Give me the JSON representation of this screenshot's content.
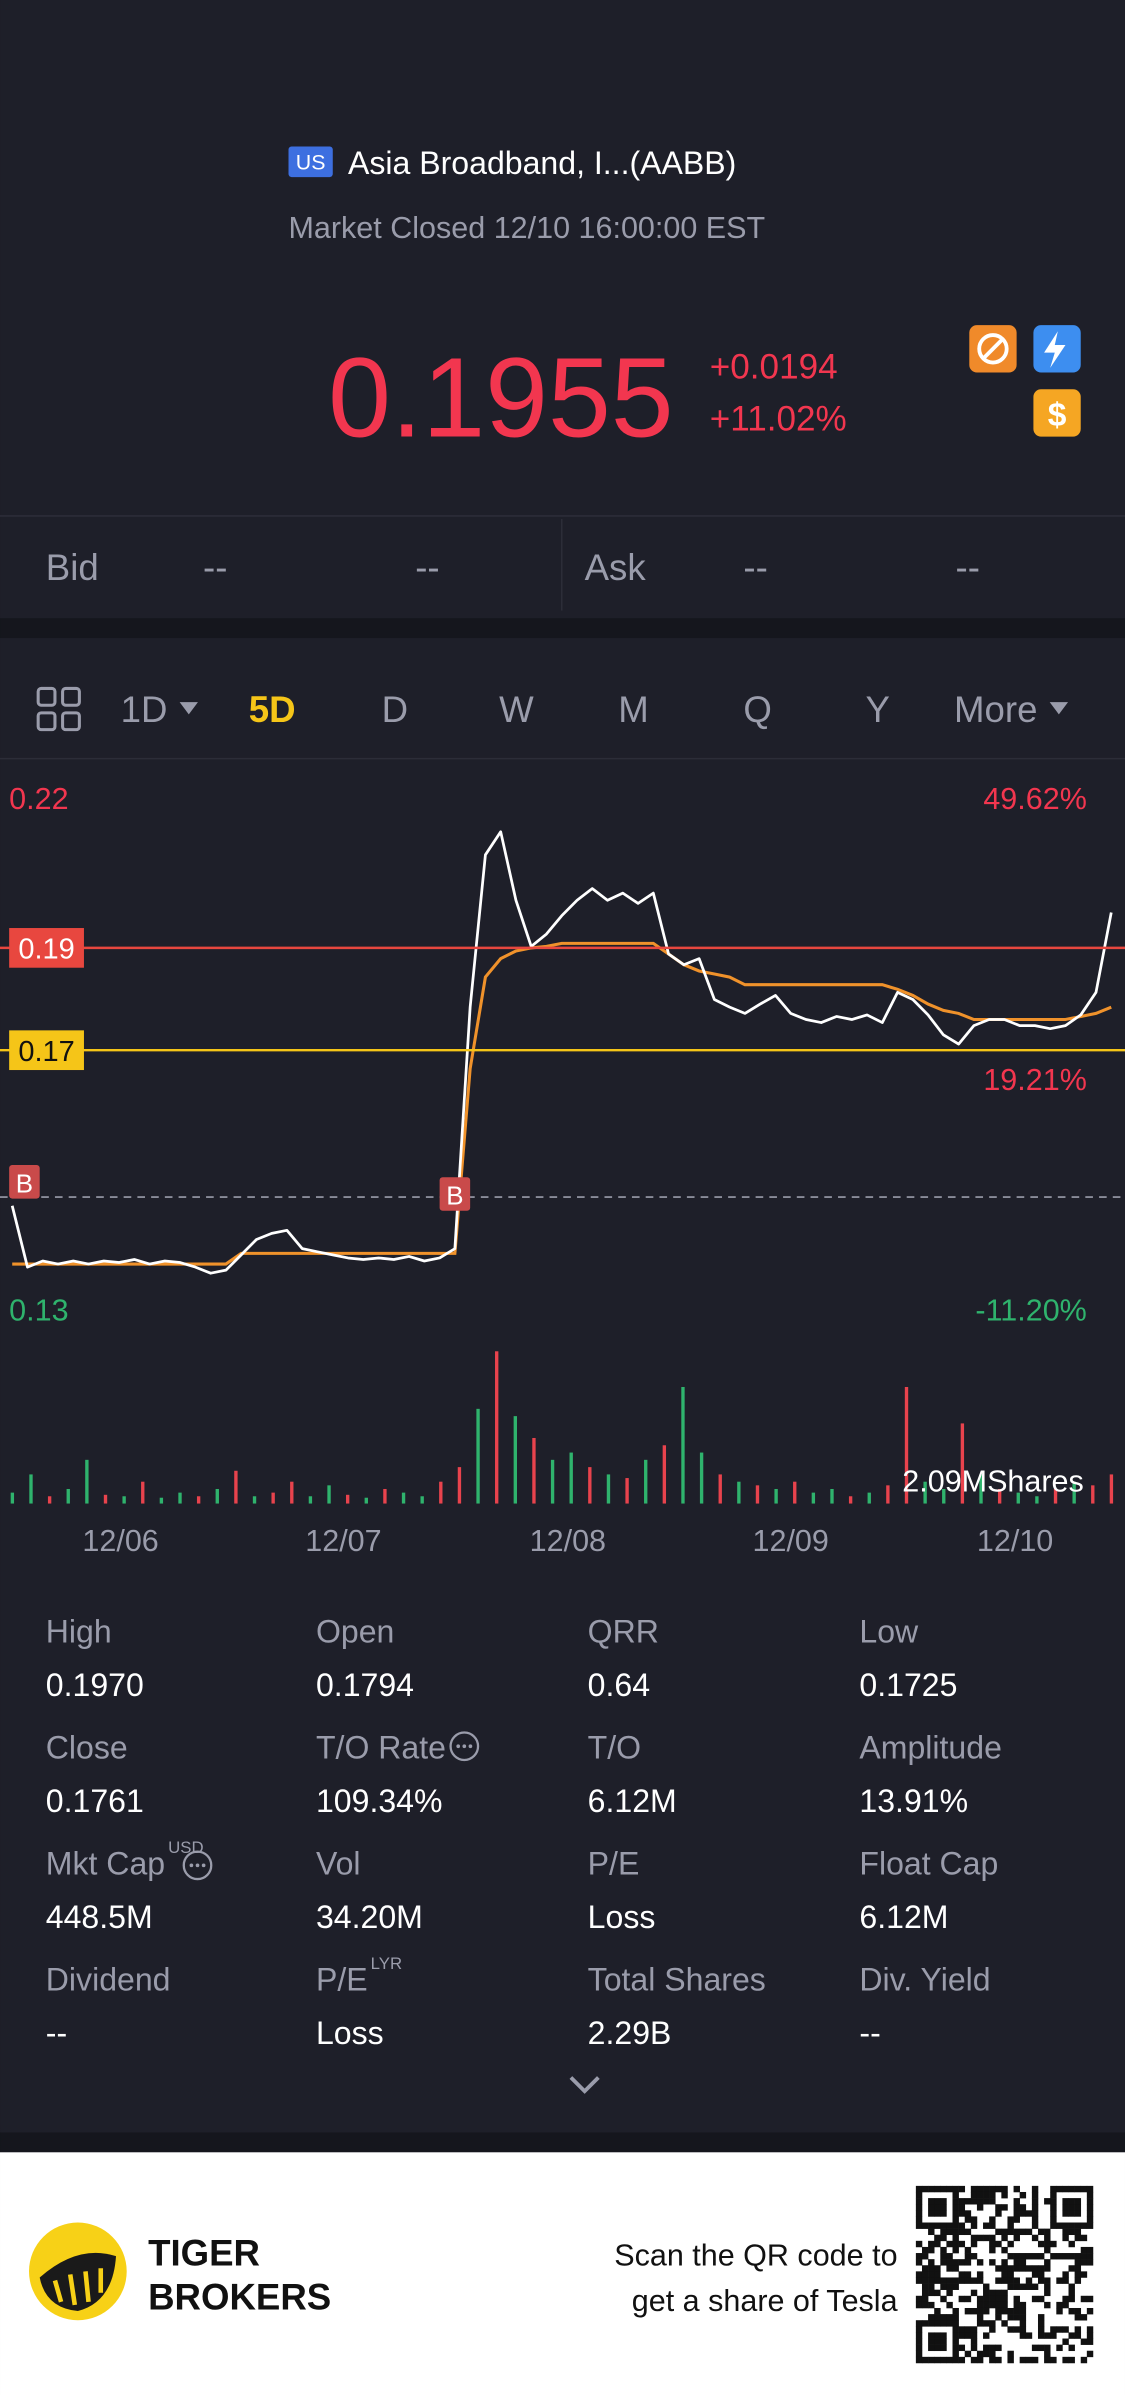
{
  "header": {
    "exchange_badge": "US",
    "title": "Asia Broadband, I...(AABB)",
    "status": "Market Closed 12/10 16:00:00 EST"
  },
  "quote": {
    "price": "0.1955",
    "change": "+0.0194",
    "change_pct": "+11.02%"
  },
  "bid_ask": {
    "bid_label": "Bid",
    "bid_price": "--",
    "bid_size": "--",
    "ask_label": "Ask",
    "ask_price": "--",
    "ask_size": "--"
  },
  "tabs": {
    "items": [
      "1D",
      "5D",
      "D",
      "W",
      "M",
      "Q",
      "Y",
      "More"
    ],
    "active_index": 1
  },
  "chart": {
    "type": "line",
    "ylim": [
      0.1157,
      0.2246
    ],
    "corner_labels": {
      "top_left": 0.22,
      "top_right": "49.62%",
      "bottom_left": 0.13,
      "bottom_right": "-11.20%"
    },
    "levels": [
      {
        "value": 0.19,
        "color": "#e8473f"
      },
      {
        "value": 0.17,
        "color": "#f5c518"
      }
    ],
    "level_note": "19.21%",
    "buy_price": 0.1413,
    "buy_markers": [
      {
        "index": 0,
        "label": "B"
      },
      {
        "index": 29,
        "label": "B"
      }
    ],
    "price": {
      "color": "#ffffff",
      "values": [
        0.1396,
        0.1276,
        0.1288,
        0.1282,
        0.1288,
        0.1282,
        0.1288,
        0.1285,
        0.1291,
        0.1282,
        0.1288,
        0.1285,
        0.1276,
        0.1264,
        0.127,
        0.13,
        0.133,
        0.1342,
        0.1348,
        0.1312,
        0.1306,
        0.13,
        0.1294,
        0.1291,
        0.1294,
        0.1291,
        0.1297,
        0.1288,
        0.1294,
        0.1312,
        0.1784,
        0.2082,
        0.2127,
        0.1993,
        0.1903,
        0.1927,
        0.1963,
        0.1993,
        0.2016,
        0.1993,
        0.2007,
        0.1987,
        0.2007,
        0.1888,
        0.1867,
        0.1879,
        0.1799,
        0.1784,
        0.1772,
        0.179,
        0.1807,
        0.1772,
        0.176,
        0.1754,
        0.1766,
        0.176,
        0.1769,
        0.1754,
        0.1813,
        0.1799,
        0.1769,
        0.173,
        0.1712,
        0.1748,
        0.176,
        0.176,
        0.1748,
        0.1748,
        0.1742,
        0.1748,
        0.1769,
        0.1813,
        0.1969
      ]
    },
    "average": {
      "color": "#f0922b",
      "values": [
        0.1282,
        0.1282,
        0.1282,
        0.1282,
        0.1282,
        0.1282,
        0.1282,
        0.1282,
        0.1282,
        0.1282,
        0.1282,
        0.1282,
        0.1282,
        0.1282,
        0.1282,
        0.1303,
        0.1303,
        0.1303,
        0.1303,
        0.1303,
        0.1303,
        0.1303,
        0.1303,
        0.1303,
        0.1303,
        0.1303,
        0.1303,
        0.1303,
        0.1303,
        0.1303,
        0.1664,
        0.1843,
        0.1879,
        0.1894,
        0.19,
        0.1903,
        0.1909,
        0.1909,
        0.1909,
        0.1909,
        0.1909,
        0.1909,
        0.1909,
        0.1888,
        0.1867,
        0.1855,
        0.1849,
        0.1843,
        0.1828,
        0.1828,
        0.1828,
        0.1828,
        0.1828,
        0.1828,
        0.1828,
        0.1828,
        0.1828,
        0.1828,
        0.1819,
        0.1807,
        0.179,
        0.1778,
        0.1772,
        0.176,
        0.176,
        0.176,
        0.176,
        0.176,
        0.176,
        0.176,
        0.1766,
        0.1772,
        0.1784
      ]
    },
    "volume": {
      "max_label": "2.09MShares",
      "ylim": [
        0,
        2.2
      ],
      "up_color": "#2fb36d",
      "down_color": "#e8434d",
      "values": [
        0.15,
        0.4,
        0.1,
        0.2,
        0.6,
        0.12,
        0.1,
        0.3,
        0.08,
        0.15,
        0.1,
        0.2,
        0.45,
        0.1,
        0.15,
        0.3,
        0.1,
        0.25,
        0.12,
        0.08,
        0.2,
        0.15,
        0.1,
        0.3,
        0.5,
        1.3,
        2.09,
        1.2,
        0.9,
        0.6,
        0.7,
        0.5,
        0.4,
        0.35,
        0.6,
        0.8,
        1.6,
        0.7,
        0.4,
        0.3,
        0.25,
        0.2,
        0.3,
        0.15,
        0.2,
        0.1,
        0.15,
        0.25,
        1.6,
        0.3,
        0.2,
        1.1,
        0.4,
        0.2,
        0.15,
        0.1,
        0.2,
        0.3,
        0.25,
        0.4
      ],
      "up": [
        true,
        true,
        false,
        true,
        true,
        false,
        true,
        false,
        true,
        true,
        false,
        true,
        false,
        true,
        false,
        false,
        true,
        true,
        false,
        true,
        false,
        true,
        true,
        false,
        false,
        true,
        false,
        true,
        false,
        true,
        true,
        false,
        true,
        false,
        true,
        false,
        true,
        true,
        false,
        true,
        false,
        true,
        false,
        true,
        true,
        false,
        true,
        false,
        false,
        true,
        true,
        false,
        true,
        false,
        true,
        true,
        false,
        true,
        false,
        false
      ]
    },
    "x_labels": [
      "12/06",
      "12/07",
      "12/08",
      "12/09",
      "12/10"
    ]
  },
  "stats": [
    {
      "label": "High",
      "value": "0.1970"
    },
    {
      "label": "Open",
      "value": "0.1794"
    },
    {
      "label": "QRR",
      "value": "0.64"
    },
    {
      "label": "Low",
      "value": "0.1725"
    },
    {
      "label": "Close",
      "value": "0.1761"
    },
    {
      "label": "T/O Rate",
      "value": "109.34%",
      "info": true
    },
    {
      "label": "T/O",
      "value": "6.12M"
    },
    {
      "label": "Amplitude",
      "value": "13.91%"
    },
    {
      "label": "Mkt Cap",
      "value": "448.5M",
      "sup": "USD",
      "info": true
    },
    {
      "label": "Vol",
      "value": "34.20M"
    },
    {
      "label": "P/E",
      "value": "Loss"
    },
    {
      "label": "Float Cap",
      "value": "6.12M"
    },
    {
      "label": "Dividend",
      "value": "--"
    },
    {
      "label": "P/E",
      "value": "Loss",
      "sup": "LYR"
    },
    {
      "label": "Total Shares",
      "value": "2.29B"
    },
    {
      "label": "Div. Yield",
      "value": "--"
    }
  ],
  "footer": {
    "brand": [
      "TIGER",
      "BROKERS"
    ],
    "promo": [
      "Scan the QR code to",
      "get a share of Tesla"
    ]
  }
}
